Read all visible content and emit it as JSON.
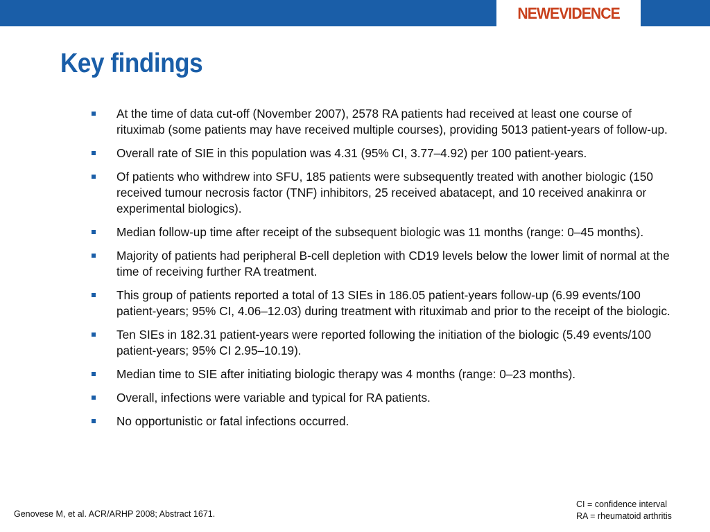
{
  "header": {
    "logo": "NEWEVIDENCE",
    "colors": {
      "bar": "#1a5ea8",
      "logo": "#c8401c"
    }
  },
  "title": "Key findings",
  "bullets": [
    "At the time of data cut-off (November 2007), 2578 RA patients had received at least one course of rituximab (some patients may have received multiple courses), providing 5013 patient-years of follow-up.",
    "Overall rate of SIE in this population was 4.31 (95% CI, 3.77–4.92) per 100 patient-years.",
    "Of patients who withdrew into SFU, 185 patients were subsequently treated with another biologic (150 received tumour necrosis factor (TNF) inhibitors, 25 received abatacept, and 10 received anakinra or experimental biologics).",
    "Median follow-up time after receipt of the subsequent biologic was 11 months (range: 0–45 months).",
    "Majority of patients had peripheral B-cell depletion with CD19 levels below the lower limit of normal at the time of receiving further RA treatment.",
    "This group of patients reported a total of 13 SIEs in 186.05 patient-years follow-up (6.99 events/100 patient-years; 95% CI, 4.06–12.03) during treatment with rituximab and prior to the receipt of the biologic.",
    "Ten SIEs in 182.31 patient-years were reported following the initiation of the biologic (5.49 events/100 patient-years; 95% CI 2.95–10.19).",
    "Median time to SIE after initiating biologic therapy was 4 months (range: 0–23 months).",
    "Overall, infections were variable and typical for RA patients.",
    "No opportunistic or fatal infections occurred."
  ],
  "footer": {
    "reference": "Genovese M, et al. ACR/ARHP 2008; Abstract 1671.",
    "abbreviations": [
      "CI = confidence interval",
      "RA = rheumatoid arthritis"
    ]
  }
}
